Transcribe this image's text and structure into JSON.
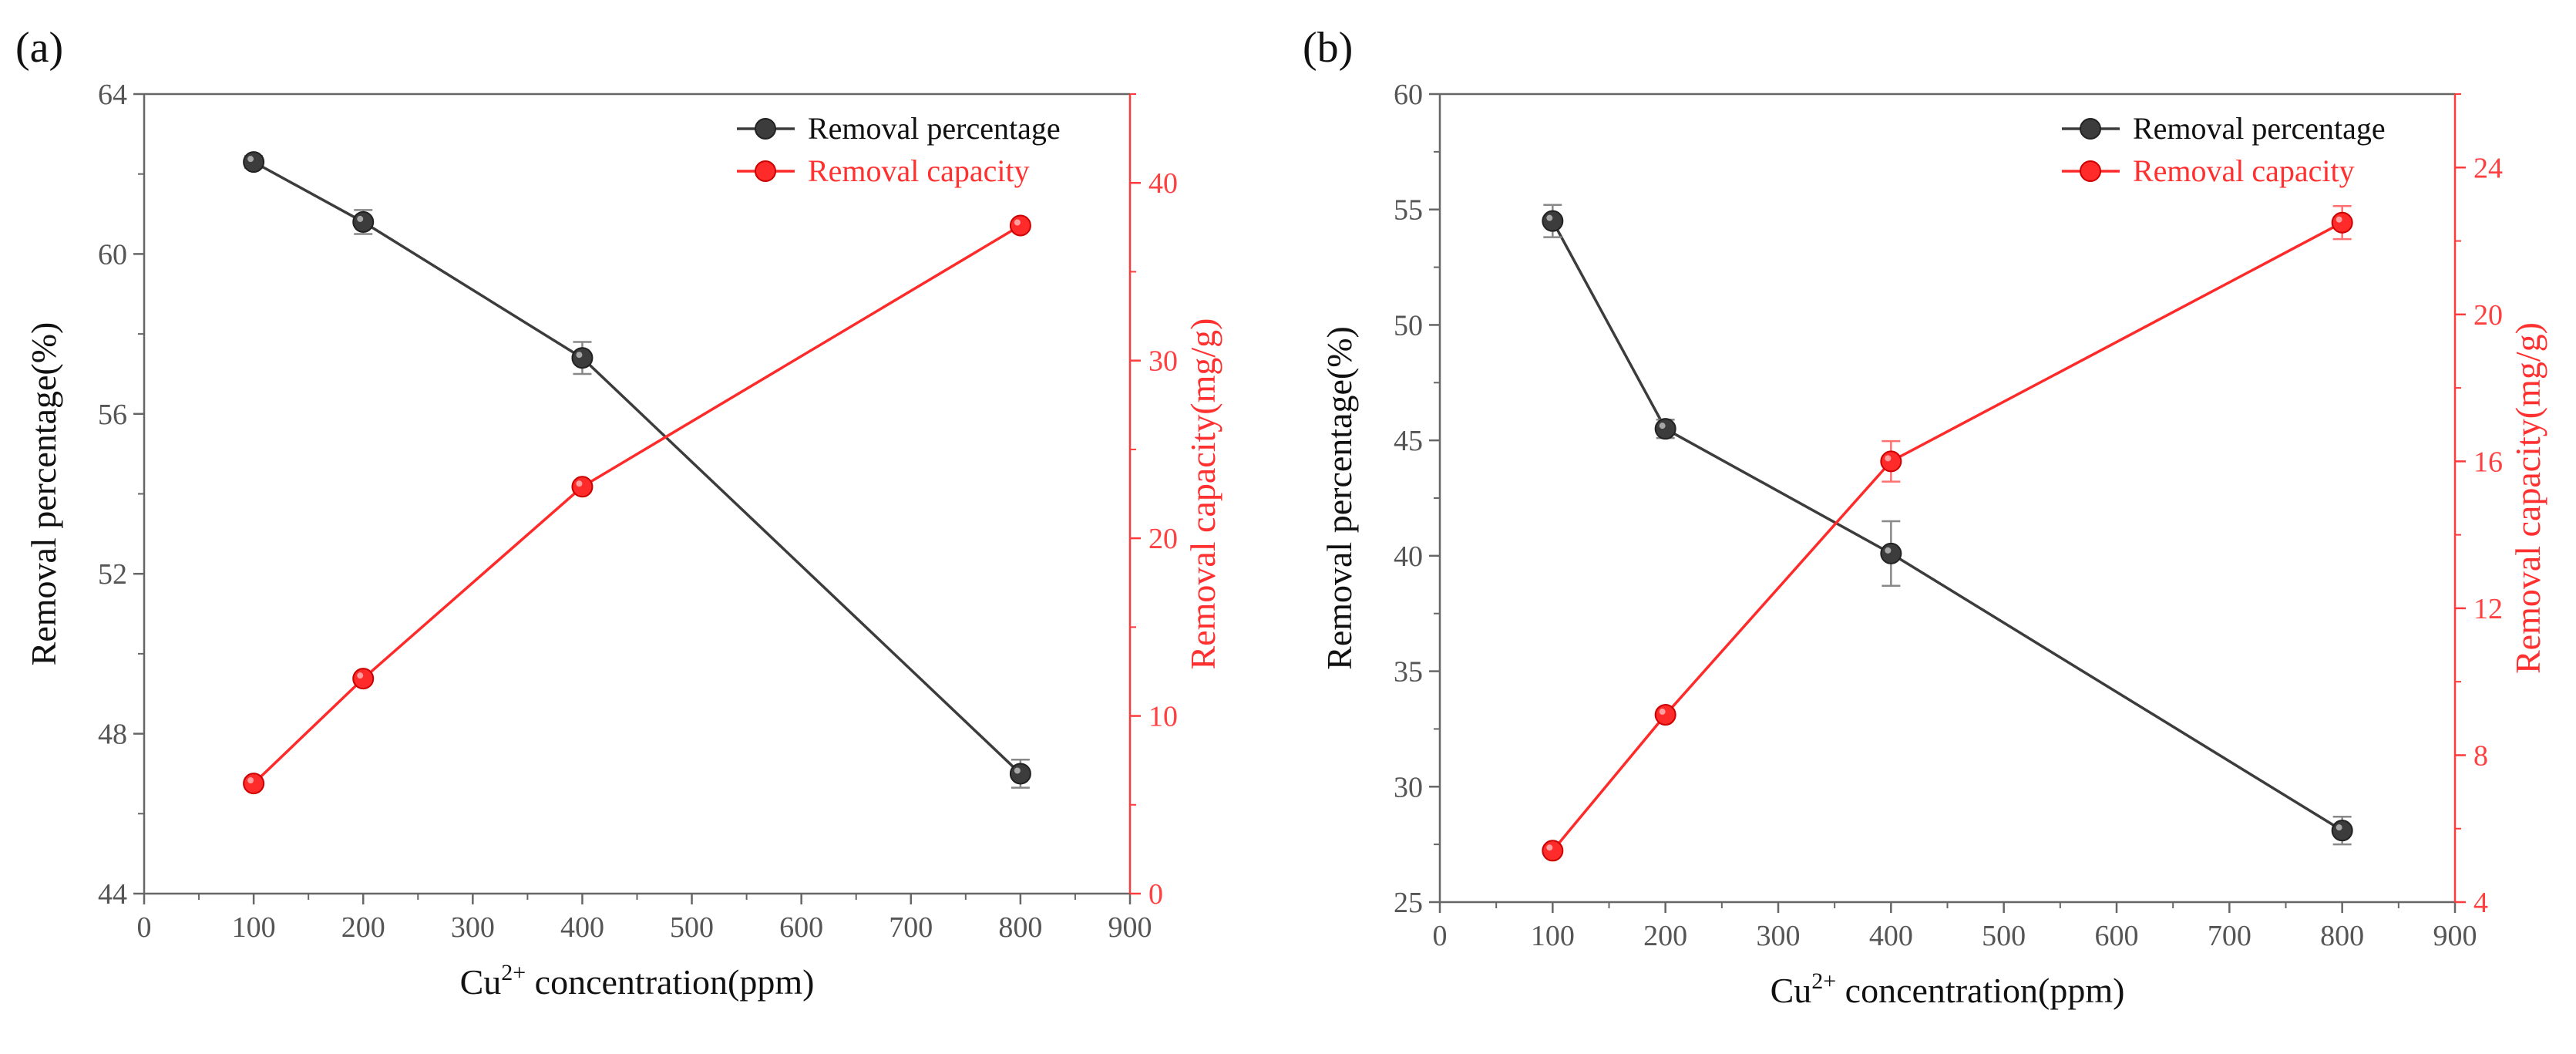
{
  "chart_data": [
    {
      "type": "line",
      "panel_label": "(a)",
      "title": "",
      "xlabel_main": "Cu",
      "xlabel_sup": "2+",
      "xlabel_rest": " concentration(ppm)",
      "ylabel": "Removal percentage(%)",
      "y2label": "Removal capacity(mg/g)",
      "xlim": [
        0,
        900
      ],
      "ylim": [
        44,
        64
      ],
      "y2lim": [
        0,
        45
      ],
      "xticks": [
        "0",
        "100",
        "200",
        "300",
        "400",
        "500",
        "600",
        "700",
        "800",
        "900"
      ],
      "yticks": [
        "44",
        "48",
        "52",
        "56",
        "60",
        "64"
      ],
      "y2ticks": [
        "0",
        "10",
        "20",
        "30",
        "40"
      ],
      "legend_position": "top-right",
      "series": [
        {
          "name": "Removal percentage",
          "axis": "left",
          "color": "#3c3c3c",
          "x": [
            100,
            200,
            400,
            800
          ],
          "values": [
            62.3,
            60.8,
            57.4,
            47.0
          ],
          "errors": [
            0.15,
            0.3,
            0.4,
            0.35
          ]
        },
        {
          "name": "Removal capacity",
          "axis": "right",
          "color": "#ff2a2a",
          "x": [
            100,
            200,
            400,
            800
          ],
          "values": [
            6.2,
            12.1,
            22.9,
            37.6
          ],
          "errors": [
            0,
            0,
            0,
            0
          ]
        }
      ]
    },
    {
      "type": "line",
      "panel_label": "(b)",
      "title": "",
      "xlabel_main": "Cu",
      "xlabel_sup": "2+",
      "xlabel_rest": " concentration(ppm)",
      "ylabel": "Removal percentage(%)",
      "y2label": "Removal capacity(mg/g)",
      "xlim": [
        0,
        900
      ],
      "ylim": [
        25,
        60
      ],
      "y2lim": [
        4,
        26
      ],
      "xticks": [
        "0",
        "100",
        "200",
        "300",
        "400",
        "500",
        "600",
        "700",
        "800",
        "900"
      ],
      "yticks": [
        "25",
        "30",
        "35",
        "40",
        "45",
        "50",
        "55",
        "60"
      ],
      "y2ticks": [
        "4",
        "8",
        "12",
        "16",
        "20",
        "24"
      ],
      "legend_position": "top-right",
      "series": [
        {
          "name": "Removal percentage",
          "axis": "left",
          "color": "#3c3c3c",
          "x": [
            100,
            200,
            400,
            800
          ],
          "values": [
            54.5,
            45.5,
            40.1,
            28.1
          ],
          "errors": [
            0.7,
            0.4,
            1.4,
            0.6
          ]
        },
        {
          "name": "Removal capacity",
          "axis": "right",
          "color": "#ff2a2a",
          "x": [
            100,
            200,
            400,
            800
          ],
          "values": [
            5.4,
            9.1,
            16.0,
            22.5
          ],
          "errors": [
            0,
            0,
            0.55,
            0.45
          ]
        }
      ]
    }
  ]
}
